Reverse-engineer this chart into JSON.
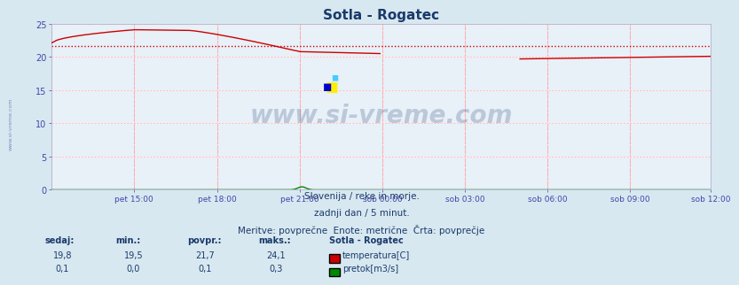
{
  "title": "Sotla - Rogatec",
  "title_color": "#1a3a6b",
  "title_fontsize": 11,
  "bg_color": "#d8e8f0",
  "plot_bg_color": "#e8f0f8",
  "grid_color_white": "#ffffff",
  "grid_color_pink": "#ffaaaa",
  "x_label_color": "#4444aa",
  "y_label_color": "#4444aa",
  "ylim": [
    0,
    25
  ],
  "yticks": [
    0,
    5,
    10,
    15,
    20,
    25
  ],
  "x_tick_labels": [
    "pet 15:00",
    "pet 18:00",
    "pet 21:00",
    "sob 00:00",
    "sob 03:00",
    "sob 06:00",
    "sob 09:00",
    "sob 12:00"
  ],
  "n_points": 288,
  "temp_color": "#cc0000",
  "flow_color": "#008800",
  "avg_color": "#cc0000",
  "watermark_text": "www.si-vreme.com",
  "watermark_color": "#1a3a6b",
  "watermark_alpha": 0.22,
  "side_text": "www.si-vreme.com",
  "footer_line1": "Slovenija / reke in morje.",
  "footer_line2": "zadnji dan / 5 minut.",
  "footer_line3": "Meritve: povprečne  Enote: metrične  Črta: povprečje",
  "footer_color": "#1a3a6b",
  "footer_fontsize": 7.5,
  "table_headers": [
    "sedaj:",
    "min.:",
    "povpr.:",
    "maks.:"
  ],
  "table_station": "Sotla - Rogatec",
  "table_temp_vals": [
    "19,8",
    "19,5",
    "21,7",
    "24,1"
  ],
  "table_flow_vals": [
    "0,1",
    "0,0",
    "0,1",
    "0,3"
  ],
  "table_color": "#1a3a6b",
  "temp_avg_value": 21.7,
  "temp_max_value": 24.1,
  "temp_min_value": 19.5
}
